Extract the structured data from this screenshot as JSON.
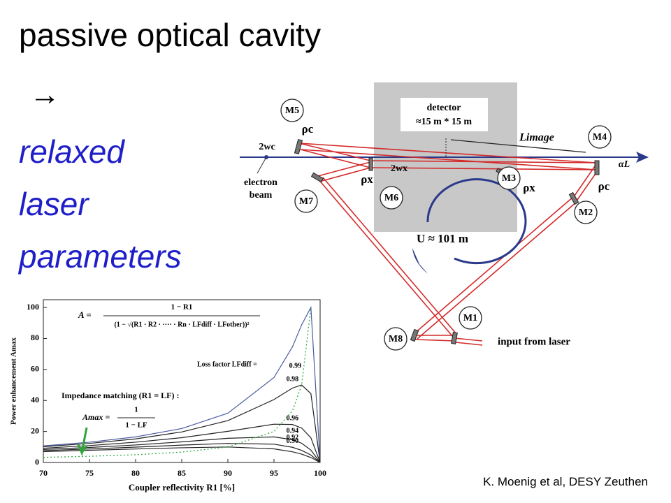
{
  "slide": {
    "title": "passive optical cavity",
    "arrow": "→",
    "conclusion": [
      "relaxed",
      "laser",
      "parameters"
    ],
    "credit": "K. Moenig et al, DESY Zeuthen"
  },
  "diagram": {
    "detector": "detector",
    "detector_size": "≈15 m * 15 m",
    "l_image": "Limage",
    "mirrors": [
      "M1",
      "M2",
      "M3",
      "M4",
      "M5",
      "M6",
      "M7",
      "M8"
    ],
    "waist_c": "2wc",
    "waist_x": "2wx",
    "rho_c": "ρc",
    "rho_x": "ρx",
    "electron_beam": [
      "electron",
      "beam"
    ],
    "round_trip": "U ≈ 101 m",
    "input": "input from laser",
    "alpha": "αL"
  },
  "chart_data": {
    "type": "line",
    "xlabel": "Coupler reflectivity R1 [%]",
    "ylabel": "Power enhancement Amax",
    "formula": {
      "lhs": "A =",
      "numerator": "1 − R1",
      "denominator": "(1 − √(R1 · R2 · ···· · Rn · LFdiff · LFother))²"
    },
    "loss_label": "Loss factor LFdiff =",
    "impedance": "Impedance matching (R1 = LF) :",
    "amax_formula": {
      "lhs": "Amax =",
      "numerator": "1",
      "denominator": "1 − LF"
    },
    "x": [
      70,
      75,
      80,
      85,
      90,
      95,
      97,
      98,
      99,
      100
    ],
    "xlim": [
      70,
      100
    ],
    "xticks": [
      70,
      75,
      80,
      85,
      90,
      95,
      100
    ],
    "ylim": [
      0,
      105
    ],
    "yticks": [
      0,
      20,
      40,
      60,
      80,
      100
    ],
    "series": [
      {
        "name": "0.99",
        "color": "#4a5aa0",
        "values": [
          10.7,
          13.1,
          16.5,
          21.9,
          31.8,
          54.8,
          74.6,
          88.8,
          100,
          0
        ]
      },
      {
        "name": "0.98",
        "color": "#222222",
        "values": [
          10.2,
          12.3,
          15.2,
          19.7,
          27.0,
          40.6,
          48,
          50,
          44.4,
          0
        ]
      },
      {
        "name": "0.96",
        "color": "#222222",
        "values": [
          9.2,
          10.9,
          13.1,
          16.0,
          20.1,
          24.7,
          24.5,
          22.2,
          15.9,
          0
        ]
      },
      {
        "name": "0.94",
        "color": "#222222",
        "values": [
          8.4,
          9.7,
          11.3,
          13.3,
          15.6,
          16.5,
          14.7,
          12.4,
          8.0,
          0
        ]
      },
      {
        "name": "0.92",
        "color": "#222222",
        "values": [
          7.7,
          8.7,
          9.9,
          11.2,
          12.3,
          11.8,
          9.8,
          7.8,
          4.8,
          0
        ]
      },
      {
        "name": "0.90",
        "color": "#222222",
        "values": [
          7.0,
          7.9,
          8.7,
          9.5,
          10.0,
          8.8,
          6.9,
          5.4,
          3.2,
          0
        ]
      },
      {
        "color": "#33aa44",
        "dashed": true,
        "values": [
          3.3,
          4,
          5,
          6.7,
          10,
          20,
          33.3,
          50,
          100,
          null
        ]
      }
    ]
  }
}
